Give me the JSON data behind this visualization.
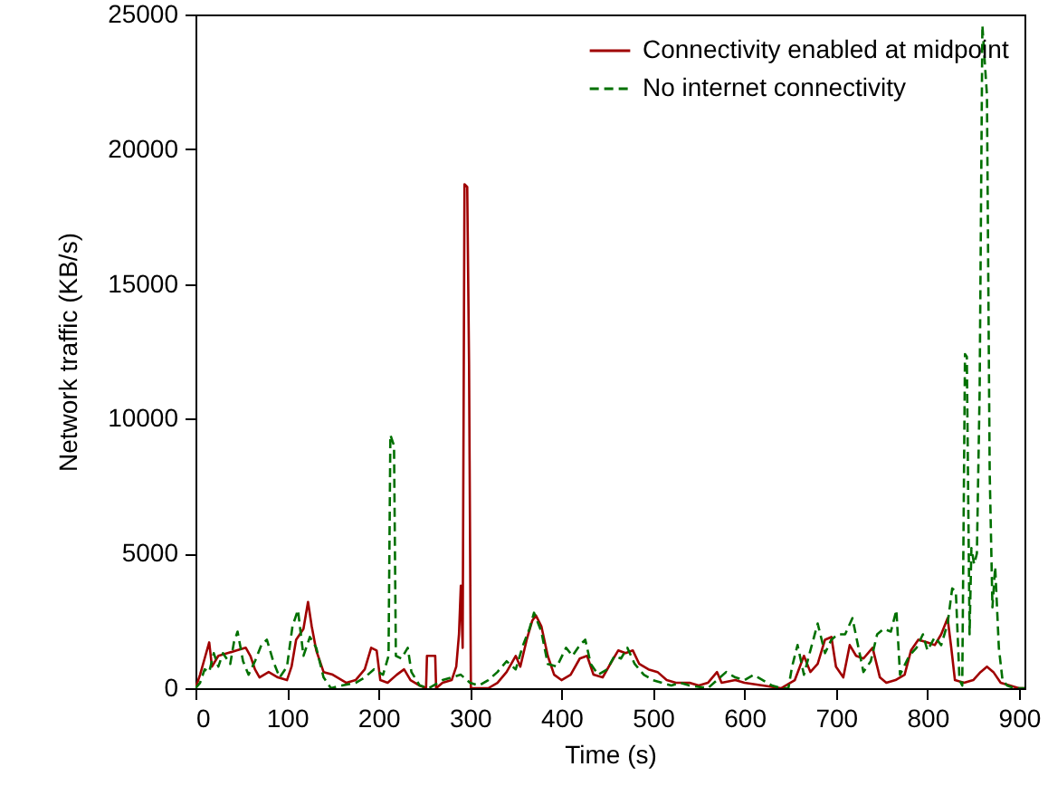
{
  "chart_data": {
    "type": "line",
    "xlabel": "Time (s)",
    "ylabel": "Network traffic (KB/s)",
    "xlim": [
      0,
      906
    ],
    "ylim": [
      0,
      25000
    ],
    "xticks": [
      0,
      100,
      200,
      300,
      400,
      500,
      600,
      700,
      800,
      900
    ],
    "yticks": [
      0,
      5000,
      10000,
      15000,
      20000,
      25000
    ],
    "grid": false,
    "legend": "top right",
    "marker": "none",
    "series": [
      {
        "name": "Connectivity enabled at midpoint",
        "color": "#a00000",
        "line_style": "solid",
        "x": [
          0,
          5,
          10,
          15,
          18,
          25,
          35,
          45,
          55,
          60,
          65,
          70,
          80,
          90,
          100,
          105,
          110,
          118,
          123,
          127,
          132,
          140,
          150,
          165,
          175,
          185,
          192,
          198,
          202,
          210,
          220,
          228,
          235,
          245,
          252,
          253,
          262,
          263,
          270,
          280,
          285,
          288,
          290,
          292,
          294,
          297,
          299,
          301,
          310,
          320,
          330,
          340,
          350,
          355,
          362,
          368,
          372,
          378,
          385,
          392,
          400,
          410,
          420,
          428,
          435,
          445,
          455,
          462,
          470,
          478,
          485,
          495,
          505,
          515,
          525,
          540,
          550,
          560,
          570,
          575,
          590,
          600,
          620,
          640,
          655,
          665,
          672,
          680,
          688,
          695,
          700,
          708,
          715,
          722,
          730,
          740,
          748,
          755,
          765,
          775,
          782,
          790,
          800,
          808,
          815,
          822,
          826,
          830,
          840,
          850,
          858,
          865,
          872,
          880,
          890,
          900,
          906
        ],
        "values": [
          0,
          500,
          1100,
          1700,
          800,
          1200,
          1300,
          1400,
          1500,
          1200,
          700,
          400,
          600,
          400,
          300,
          800,
          1800,
          2200,
          3200,
          2300,
          1400,
          600,
          500,
          200,
          300,
          700,
          1500,
          1400,
          300,
          200,
          500,
          700,
          300,
          100,
          0,
          1200,
          1200,
          0,
          200,
          300,
          800,
          2000,
          3800,
          1500,
          18700,
          18600,
          12000,
          0,
          0,
          0,
          200,
          600,
          1200,
          800,
          1800,
          2500,
          2700,
          2300,
          1200,
          500,
          300,
          500,
          1100,
          1200,
          500,
          400,
          1000,
          1400,
          1300,
          1400,
          900,
          700,
          600,
          300,
          200,
          200,
          100,
          200,
          600,
          200,
          300,
          200,
          100,
          0,
          300,
          1200,
          600,
          900,
          1800,
          1900,
          800,
          400,
          1600,
          1200,
          1100,
          1500,
          400,
          200,
          300,
          500,
          1400,
          1800,
          1700,
          1600,
          2000,
          2600,
          1500,
          300,
          200,
          300,
          600,
          800,
          600,
          200,
          100,
          0,
          0
        ]
      },
      {
        "name": "No internet connectivity",
        "color": "#007000",
        "line_style": "dashed",
        "x": [
          0,
          5,
          10,
          15,
          20,
          25,
          30,
          38,
          42,
          46,
          52,
          58,
          65,
          72,
          78,
          85,
          92,
          100,
          106,
          112,
          118,
          125,
          132,
          140,
          148,
          160,
          175,
          185,
          195,
          205,
          211,
          213,
          217,
          219,
          225,
          232,
          236,
          245,
          255,
          270,
          280,
          290,
          300,
          310,
          320,
          330,
          340,
          350,
          358,
          365,
          370,
          378,
          385,
          395,
          405,
          412,
          420,
          426,
          432,
          440,
          450,
          458,
          465,
          472,
          480,
          490,
          500,
          510,
          520,
          530,
          540,
          560,
          570,
          580,
          590,
          600,
          610,
          620,
          630,
          640,
          648,
          652,
          658,
          665,
          672,
          680,
          688,
          695,
          702,
          710,
          718,
          724,
          730,
          738,
          745,
          752,
          760,
          766,
          770,
          780,
          788,
          795,
          800,
          808,
          815,
          822,
          827,
          831,
          835,
          838,
          841,
          843,
          846,
          848,
          851,
          854,
          857,
          860,
          865,
          868,
          871,
          874,
          878,
          882,
          887,
          895,
          906
        ],
        "values": [
          0,
          200,
          700,
          600,
          1300,
          800,
          1300,
          900,
          1700,
          2100,
          1000,
          500,
          1000,
          1600,
          1800,
          1000,
          400,
          800,
          2300,
          2900,
          1200,
          1900,
          1500,
          400,
          0,
          100,
          200,
          400,
          700,
          500,
          1200,
          9400,
          9000,
          1200,
          1100,
          1500,
          600,
          100,
          0,
          300,
          400,
          500,
          200,
          100,
          300,
          600,
          1000,
          700,
          1600,
          2200,
          2800,
          2100,
          900,
          800,
          1500,
          1200,
          1600,
          1800,
          900,
          500,
          700,
          1200,
          1100,
          1500,
          900,
          500,
          300,
          200,
          100,
          200,
          100,
          0,
          300,
          600,
          400,
          300,
          500,
          300,
          100,
          0,
          0,
          800,
          1600,
          500,
          1400,
          2400,
          1300,
          1800,
          2000,
          2000,
          2600,
          1600,
          600,
          1000,
          2000,
          2200,
          2100,
          2900,
          500,
          1200,
          1500,
          2000,
          1400,
          1900,
          1600,
          2400,
          3700,
          3600,
          300,
          100,
          12400,
          12300,
          2000,
          5200,
          4600,
          5000,
          11000,
          24600,
          22000,
          8000,
          3000,
          4500,
          1500,
          300,
          100,
          0,
          0
        ]
      }
    ]
  }
}
